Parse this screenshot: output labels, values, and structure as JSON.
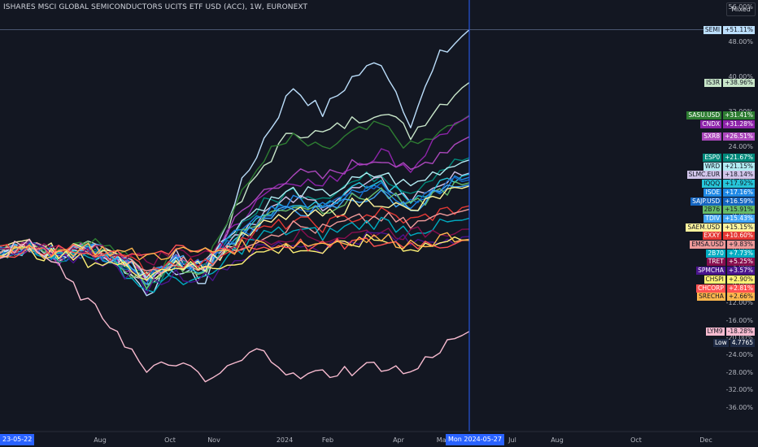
{
  "header": {
    "title": "ISHARES MSCI GLOBAL SEMICONDUCTORS UCITS ETF USD (ACC), 1W, EURONEXT",
    "scale_mode": "Mixed"
  },
  "chart_data": {
    "type": "line",
    "title": "ISHARES MSCI GLOBAL SEMICONDUCTORS UCITS ETF USD (ACC), 1W, EURONEXT",
    "xlabel": "",
    "ylabel": "",
    "y_unit": "%",
    "ylim": [
      -38,
      58
    ],
    "grid": false,
    "legend": "right price axis",
    "x_start": "2023-05-22",
    "x_cursor": "2024-05-27",
    "x_tick_labels": [
      "Aug",
      "Oct",
      "Nov",
      "2024",
      "Feb",
      "Apr",
      "May",
      "Jul",
      "Aug",
      "Oct",
      "Dec"
    ],
    "x_highlight_labels": {
      "start": "23-05-22",
      "cursor": "Mon 2024-05-27"
    },
    "y_ticks": [
      56,
      48,
      40,
      32,
      24,
      16,
      8,
      0,
      -4,
      -8,
      -12,
      -16,
      -20,
      -24,
      -28,
      -32,
      -36
    ],
    "y_tick_labels": [
      "56.00%",
      "48.00%",
      "40.00%",
      "32.00%",
      "24.00%",
      "16.00%",
      "8.00%",
      "0.00%",
      "-4.00%",
      "-8.00%",
      "-12.00%",
      "-16.00%",
      "-20.00%",
      "-24.00%",
      "-28.00%",
      "-32.00%",
      "-36.00%"
    ],
    "series": [
      {
        "name": "SEMI",
        "last_label": "+51.11%",
        "color": "#bbdefb",
        "text": "#131722",
        "last": 51.11,
        "shape": [
          0,
          1,
          -1,
          0,
          -2,
          -9,
          -4,
          -7,
          12,
          26,
          38,
          32,
          40,
          44,
          30,
          45,
          51.11
        ]
      },
      {
        "name": "IS3R",
        "last_label": "+38.96%",
        "color": "#c8e6c9",
        "text": "#131722",
        "last": 38.96,
        "shape": [
          0,
          1,
          -1,
          1,
          -1,
          -7,
          -3,
          -5,
          9,
          20,
          28,
          27,
          30,
          33,
          27,
          34,
          38.96
        ]
      },
      {
        "name": "SASU.USD",
        "last_label": "+31.41%",
        "color": "#2e7d32",
        "text": "#ffffff",
        "last": 31.41,
        "shape": [
          0,
          2,
          1,
          3,
          0,
          -5,
          -1,
          -2,
          10,
          22,
          26,
          23,
          27,
          29,
          24,
          27,
          31.41
        ]
      },
      {
        "name": "CNDX",
        "last_label": "+31.28%",
        "color": "#8e24aa",
        "text": "#ffffff",
        "last": 31.28,
        "shape": [
          0,
          1,
          -2,
          1,
          -2,
          -6,
          -2,
          -3,
          6,
          14,
          17,
          15,
          20,
          23,
          19,
          27,
          31.28
        ]
      },
      {
        "name": "SXR8",
        "last_label": "+26.51%",
        "color": "#ab47bc",
        "text": "#ffffff",
        "last": 26.51,
        "shape": [
          0,
          1,
          -1,
          1,
          -1,
          -6,
          -2,
          -3,
          7,
          14,
          18,
          17,
          20,
          22,
          18,
          23,
          26.51
        ]
      },
      {
        "name": "ESP0",
        "last_label": "+21.67%",
        "color": "#00897b",
        "text": "#ffffff",
        "last": 21.67,
        "shape": [
          0,
          1,
          -1,
          1,
          -2,
          -7,
          -3,
          -4,
          5,
          11,
          14,
          13,
          16,
          18,
          14,
          19,
          21.67
        ]
      },
      {
        "name": "WRD",
        "last_label": "+21.15%",
        "color": "#b2ebf2",
        "text": "#131722",
        "last": 21.15,
        "shape": [
          0,
          1,
          -1,
          1,
          -1,
          -5,
          -2,
          -3,
          6,
          11,
          14,
          13,
          16,
          18,
          15,
          19,
          21.15
        ]
      },
      {
        "name": "SLMC.EUR",
        "last_label": "+18.14%",
        "color": "#d1c4e9",
        "text": "#131722",
        "last": 18.14,
        "shape": [
          0,
          1,
          0,
          1,
          -1,
          -5,
          -1,
          -2,
          4,
          9,
          12,
          11,
          14,
          16,
          12,
          16,
          18.14
        ]
      },
      {
        "name": "IQQQ",
        "last_label": "+17.92%",
        "color": "#26c6da",
        "text": "#131722",
        "last": 17.92,
        "shape": [
          0,
          1,
          -1,
          1,
          -2,
          -7,
          -3,
          -4,
          4,
          9,
          12,
          11,
          14,
          16,
          12,
          16,
          17.92
        ]
      },
      {
        "name": "ISOE",
        "last_label": "+17.16%",
        "color": "#1e88e5",
        "text": "#ffffff",
        "last": 17.16,
        "shape": [
          0,
          1,
          -1,
          1,
          -2,
          -6,
          -2,
          -3,
          4,
          9,
          12,
          11,
          13,
          15,
          11,
          15,
          17.16
        ]
      },
      {
        "name": "SAJP.USD",
        "last_label": "+16.59%",
        "color": "#1565c0",
        "text": "#ffffff",
        "last": 16.59,
        "shape": [
          0,
          1,
          -1,
          0,
          -2,
          -6,
          -3,
          -4,
          3,
          8,
          11,
          10,
          13,
          15,
          11,
          15,
          16.59
        ]
      },
      {
        "name": "2B76",
        "last_label": "+15.91%",
        "color": "#66bb6a",
        "text": "#131722",
        "last": 15.91,
        "shape": [
          0,
          2,
          0,
          1,
          -2,
          -7,
          -3,
          -5,
          3,
          8,
          11,
          10,
          12,
          14,
          10,
          14,
          15.91
        ]
      },
      {
        "name": "TDIV",
        "last_label": "+15.43%",
        "color": "#42a5f5",
        "text": "#ffffff",
        "last": 15.43,
        "shape": [
          0,
          1,
          0,
          1,
          -1,
          -5,
          -2,
          -3,
          3,
          7,
          10,
          9,
          12,
          13,
          10,
          14,
          15.43
        ]
      },
      {
        "name": "SAEM.USD",
        "last_label": "+15.15%",
        "color": "#fff59d",
        "text": "#131722",
        "last": 15.15,
        "shape": [
          0,
          2,
          0,
          1,
          -1,
          -6,
          -2,
          -3,
          2,
          6,
          9,
          8,
          11,
          12,
          9,
          13,
          15.15
        ]
      },
      {
        "name": "EXXY",
        "last_label": "+10.60%",
        "color": "#e53935",
        "text": "#ffffff",
        "last": 10.6,
        "shape": [
          0,
          1,
          0,
          1,
          -1,
          -4,
          -2,
          -3,
          2,
          5,
          7,
          6,
          8,
          9,
          7,
          9,
          10.6
        ]
      },
      {
        "name": "EMSA.USD",
        "last_label": "+9.83%",
        "color": "#ef9a9a",
        "text": "#131722",
        "last": 9.83,
        "shape": [
          0,
          1,
          0,
          1,
          -1,
          -5,
          -2,
          -3,
          1,
          4,
          6,
          5,
          7,
          8,
          6,
          8,
          9.83
        ]
      },
      {
        "name": "2B70",
        "last_label": "+7.73%",
        "color": "#00acc1",
        "text": "#ffffff",
        "last": 7.73,
        "shape": [
          0,
          1,
          -1,
          0,
          -3,
          -9,
          -6,
          -7,
          0,
          4,
          5,
          4,
          6,
          7,
          5,
          6,
          7.73
        ]
      },
      {
        "name": "TRET",
        "last_label": "+5.25%",
        "color": "#880e4f",
        "text": "#ffffff",
        "last": 5.25,
        "shape": [
          0,
          1,
          0,
          1,
          0,
          -2,
          0,
          0,
          2,
          3,
          4,
          3,
          4,
          5,
          4,
          5,
          5.25
        ]
      },
      {
        "name": "SPMCHA",
        "last_label": "+3.57%",
        "color": "#4a148c",
        "text": "#ffffff",
        "last": 3.57,
        "shape": [
          0,
          1,
          -2,
          0,
          -4,
          -8,
          -5,
          -6,
          -2,
          1,
          2,
          1,
          3,
          4,
          2,
          3,
          3.57
        ]
      },
      {
        "name": "CHSPI",
        "last_label": "+2.90%",
        "color": "#fff176",
        "text": "#131722",
        "last": 2.9,
        "shape": [
          0,
          0,
          -1,
          -2,
          -3,
          -5,
          -3,
          -4,
          -2,
          0,
          1,
          0,
          2,
          3,
          1,
          2,
          2.9
        ]
      },
      {
        "name": "CHCORP",
        "last_label": "+2.81%",
        "color": "#ff5252",
        "text": "#ffffff",
        "last": 2.81,
        "shape": [
          0,
          0,
          0,
          0,
          0,
          0,
          0,
          0,
          1,
          1,
          2,
          1,
          2,
          2,
          2,
          2,
          2.81
        ]
      },
      {
        "name": "SRECHA",
        "last_label": "+2.66%",
        "color": "#ffb74d",
        "text": "#131722",
        "last": 2.66,
        "shape": [
          0,
          0,
          0,
          1,
          0,
          -1,
          0,
          0,
          1,
          2,
          2,
          2,
          3,
          3,
          2,
          3,
          2.66
        ]
      },
      {
        "name": "LYM9",
        "last_label": "-18.28%",
        "color": "#f8bbd0",
        "text": "#131722",
        "last": -18.28,
        "shape": [
          0,
          2,
          -4,
          -12,
          -18,
          -28,
          -25,
          -30,
          -26,
          -22,
          -29,
          -28,
          -27,
          -26,
          -28,
          -22,
          -18.28
        ]
      }
    ],
    "low_marker": {
      "name": "Low",
      "value_label": "4.7765",
      "bg": "#131722",
      "text_bg": "#1e2a44",
      "text": "#ffffff"
    }
  }
}
